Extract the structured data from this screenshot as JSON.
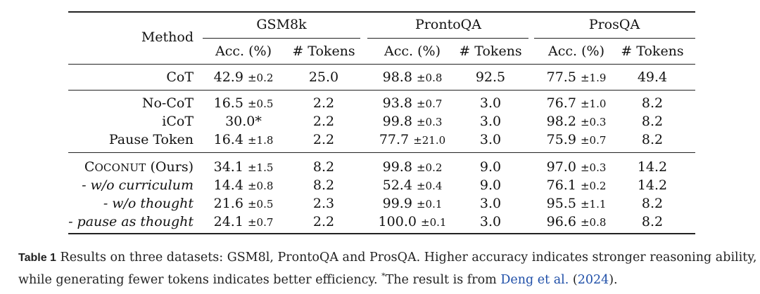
{
  "table": {
    "method_header": "Method",
    "groups": [
      "GSM8k",
      "ProntoQA",
      "ProsQA"
    ],
    "subheaders": [
      "Acc. (%)",
      "# Tokens",
      "Acc. (%)",
      "# Tokens",
      "Acc. (%)",
      "# Tokens"
    ],
    "sections": [
      {
        "rows": [
          {
            "method": "CoT",
            "cells": [
              "42.9",
              "±0.2",
              "25.0",
              "98.8",
              "±0.8",
              "92.5",
              "77.5",
              "±1.9",
              "49.4"
            ]
          }
        ]
      },
      {
        "rows": [
          {
            "method": "No-CoT",
            "cells": [
              "16.5",
              "±0.5",
              "2.2",
              "93.8",
              "±0.7",
              "3.0",
              "76.7",
              "±1.0",
              "8.2"
            ]
          },
          {
            "method": "iCoT",
            "cells": [
              "30.0*",
              "",
              "2.2",
              "99.8",
              "±0.3",
              "3.0",
              "98.2",
              "±0.3",
              "8.2"
            ]
          },
          {
            "method": "Pause Token",
            "cells": [
              "16.4",
              "±1.8",
              "2.2",
              "77.7",
              "±21.0",
              "3.0",
              "75.9",
              "±0.7",
              "8.2"
            ]
          }
        ]
      },
      {
        "rows": [
          {
            "method_sc_first": "C",
            "method_sc_rest": "OCONUT",
            "method_suffix": " (Ours)",
            "cells": [
              "34.1",
              "±1.5",
              "8.2",
              "99.8",
              "±0.2",
              "9.0",
              "97.0",
              "±0.3",
              "14.2"
            ]
          },
          {
            "method": "- w/o curriculum",
            "cells": [
              "14.4",
              "±0.8",
              "8.2",
              "52.4",
              "±0.4",
              "9.0",
              "76.1",
              "±0.2",
              "14.2"
            ]
          },
          {
            "method": "- w/o thought",
            "cells": [
              "21.6",
              "±0.5",
              "2.3",
              "99.9",
              "±0.1",
              "3.0",
              "95.5",
              "±1.1",
              "8.2"
            ]
          },
          {
            "method": "- pause as thought",
            "cells": [
              "24.1",
              "±0.7",
              "2.2",
              "100.0",
              "±0.1",
              "3.0",
              "96.6",
              "±0.8",
              "8.2"
            ]
          }
        ]
      }
    ]
  },
  "caption": {
    "label": "Table 1",
    "text_1": "Results on three datasets: GSM8l, ProntoQA and ProsQA. Higher accuracy indicates stronger reasoning ability,",
    "text_2": "while generating fewer tokens indicates better efficiency. ",
    "footnote_mark": "*",
    "text_3": "The result is from ",
    "citation_author": "Deng et al.",
    "citation_year": "2024",
    "text_4": ")."
  }
}
